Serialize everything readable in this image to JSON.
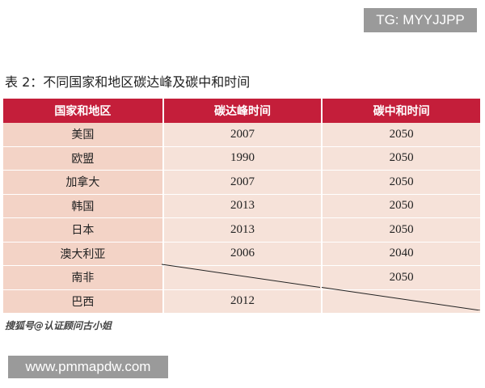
{
  "watermark_top": "TG: MYYJJPP",
  "caption": "表 2：不同国家和地区碳达峰及碳中和时间",
  "table": {
    "headers": [
      "国家和地区",
      "碳达峰时间",
      "碳中和时间"
    ],
    "rows": [
      [
        "美国",
        "2007",
        "2050"
      ],
      [
        "欧盟",
        "1990",
        "2050"
      ],
      [
        "加拿大",
        "2007",
        "2050"
      ],
      [
        "韩国",
        "2013",
        "2050"
      ],
      [
        "日本",
        "2013",
        "2050"
      ],
      [
        "澳大利亚",
        "2006",
        "2040"
      ],
      [
        "南非",
        "",
        "2050"
      ],
      [
        "巴西",
        "2012",
        ""
      ]
    ]
  },
  "source": "搜狐号@认证顾问古小姐",
  "watermark_bottom": "www.pmmapdw.com"
}
